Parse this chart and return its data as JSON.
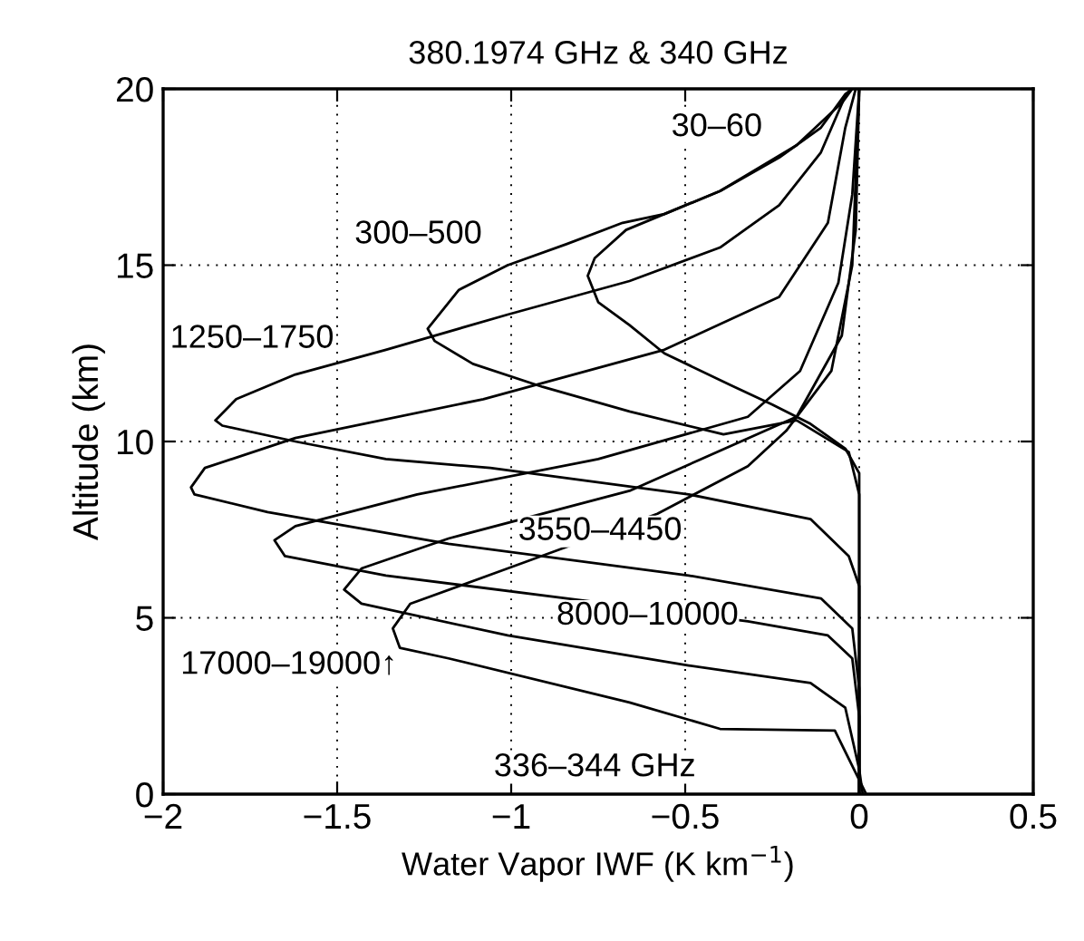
{
  "chart_data": {
    "type": "line",
    "title": "380.1974 GHz & 340 GHz",
    "xlabel": "Water Vapor IWF (K km$^{−1}$)",
    "ylabel": "Altitude (km)",
    "xlim": [
      -2,
      0.5
    ],
    "ylim": [
      0,
      20
    ],
    "xticks": [
      {
        "value": -2,
        "label": "−2"
      },
      {
        "value": -1.5,
        "label": "−1.5"
      },
      {
        "value": -1,
        "label": "−1"
      },
      {
        "value": -0.5,
        "label": "−0.5"
      },
      0,
      0.5
    ],
    "yticks": [
      0,
      5,
      10,
      15,
      20
    ],
    "grid": true,
    "line_style": "solid",
    "marker": "none",
    "series": [
      {
        "color": "#000000",
        "x": [
          0,
          0,
          -0.04,
          -0.14,
          -0.25,
          -0.37,
          -0.56,
          -0.66,
          -0.75,
          -0.78,
          -0.76,
          -0.67,
          -0.56,
          -0.4,
          -0.23,
          -0.11,
          -0.04,
          -0.02
        ],
        "values": [
          0,
          9.1,
          9.8,
          10.5,
          11.05,
          11.6,
          12.5,
          13.3,
          13.95,
          14.7,
          15.2,
          16.0,
          16.45,
          17.1,
          18.05,
          18.9,
          19.85,
          20
        ]
      },
      {
        "color": "#000000",
        "x": [
          0,
          0,
          -0.03,
          -0.18,
          -0.39,
          -0.66,
          -0.91,
          -1.11,
          -1.22,
          -1.24,
          -1.15,
          -1.01,
          -0.84,
          -0.68,
          -0.56,
          -0.4,
          -0.18,
          -0.05,
          -0.02
        ],
        "values": [
          0,
          8.5,
          9.7,
          10.6,
          10.2,
          10.85,
          11.55,
          12.2,
          12.85,
          13.2,
          14.3,
          15.0,
          15.6,
          16.2,
          16.45,
          17.1,
          18.4,
          19.6,
          20
        ]
      },
      {
        "color": "#000000",
        "x": [
          0,
          0,
          -0.03,
          -0.14,
          -0.49,
          -1.06,
          -1.36,
          -1.62,
          -1.83,
          -1.85,
          -1.79,
          -1.62,
          -1.36,
          -1.01,
          -0.66,
          -0.4,
          -0.23,
          -0.11,
          -0.04,
          -0.02
        ],
        "values": [
          0,
          5.9,
          6.75,
          7.8,
          8.5,
          9.25,
          9.5,
          10.0,
          10.45,
          10.6,
          11.2,
          11.9,
          12.6,
          13.6,
          14.55,
          15.5,
          16.7,
          18.2,
          19.8,
          20
        ]
      },
      {
        "color": "#000000",
        "x": [
          0,
          0,
          -0.02,
          -0.11,
          -0.49,
          -1.18,
          -1.7,
          -1.91,
          -1.92,
          -1.88,
          -1.62,
          -1.08,
          -0.56,
          -0.23,
          -0.09,
          -0.04,
          -0.01
        ],
        "values": [
          0,
          3.0,
          4.7,
          5.55,
          6.2,
          7.1,
          8.0,
          8.5,
          8.7,
          9.25,
          10.1,
          11.2,
          12.6,
          14.1,
          16.2,
          18.9,
          20
        ]
      },
      {
        "color": "#000000",
        "x": [
          0,
          0,
          -0.02,
          -0.09,
          -0.32,
          -0.84,
          -1.36,
          -1.65,
          -1.68,
          -1.62,
          -1.27,
          -0.75,
          -0.32,
          -0.17,
          -0.06,
          -0.02,
          0
        ],
        "values": [
          0,
          2.2,
          3.85,
          4.5,
          4.9,
          5.55,
          6.2,
          6.75,
          7.2,
          7.6,
          8.5,
          9.5,
          10.7,
          12.0,
          14.5,
          17,
          20
        ]
      },
      {
        "color": "#000000",
        "x": [
          0.01,
          0,
          -0.04,
          -0.14,
          -0.49,
          -1.01,
          -1.43,
          -1.48,
          -1.43,
          -1.18,
          -0.66,
          -0.18,
          -0.05,
          -0.01,
          0
        ],
        "values": [
          0,
          0.7,
          2.45,
          3.15,
          3.65,
          4.5,
          5.4,
          5.8,
          6.4,
          7.25,
          8.6,
          10.7,
          13,
          16,
          20
        ]
      },
      {
        "color": "#000000",
        "x": [
          0.02,
          0,
          -0.07,
          -0.4,
          -0.66,
          -1.18,
          -1.32,
          -1.34,
          -1.29,
          -1.01,
          -0.58,
          -0.32,
          -0.21,
          -0.08,
          -0.02,
          0
        ],
        "values": [
          0,
          0.4,
          1.8,
          1.85,
          2.6,
          3.85,
          4.15,
          4.7,
          5.4,
          6.4,
          7.95,
          9.3,
          10.3,
          12,
          15,
          20
        ]
      }
    ],
    "annotations": [
      "30–60",
      "300–500",
      "1250–1750",
      "3550–4450",
      "8000–10000",
      "17000–19000↑",
      "336–344 GHz"
    ]
  }
}
